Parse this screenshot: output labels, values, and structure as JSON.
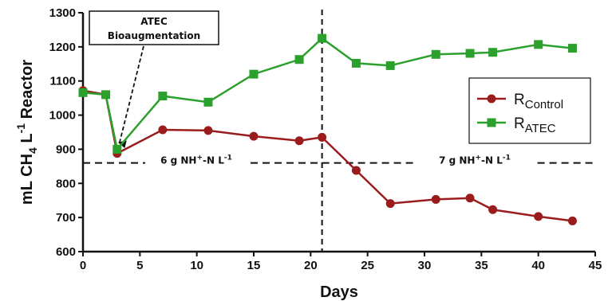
{
  "chart_data": {
    "type": "line",
    "title": "",
    "xlabel": "Days",
    "ylabel": {
      "main": "mL CH",
      "sub": "4",
      "mid": " L",
      "sup": "-1",
      "end": " Reactor"
    },
    "xlim": [
      0,
      45
    ],
    "ylim": [
      600,
      1300
    ],
    "xticks": [
      0,
      5,
      10,
      15,
      20,
      25,
      30,
      35,
      40,
      45
    ],
    "yticks": [
      600,
      700,
      800,
      900,
      1000,
      1100,
      1200,
      1300
    ],
    "grid": false,
    "legend_position": "right",
    "series": [
      {
        "name": {
          "base": "R",
          "sub": "Control"
        },
        "color": "#9b1c1c",
        "marker": "circle",
        "x": [
          0,
          2,
          3,
          7,
          11,
          15,
          19,
          21,
          24,
          27,
          31,
          34,
          36,
          40,
          43
        ],
        "y": [
          1072,
          1060,
          888,
          957,
          955,
          938,
          925,
          935,
          838,
          741,
          753,
          757,
          723,
          703,
          690
        ]
      },
      {
        "name": {
          "base": "R",
          "sub": "ATEC"
        },
        "color": "#2ca02c",
        "marker": "square",
        "x": [
          0,
          2,
          3,
          7,
          11,
          15,
          19,
          21,
          24,
          27,
          31,
          34,
          36,
          40,
          43
        ],
        "y": [
          1066,
          1060,
          900,
          1056,
          1038,
          1120,
          1163,
          1225,
          1152,
          1145,
          1178,
          1181,
          1184,
          1207,
          1196
        ]
      }
    ],
    "annotations": {
      "arrow_box": {
        "line1": "ATEC",
        "line2": "Bioaugmentation",
        "points_to_day": 3
      },
      "vertical_line_day": 21,
      "threshold_y": 860,
      "phase1_label": {
        "pre": "6 g NH",
        "sub": "4",
        "sup": "+",
        "post": "-N L",
        "sup2": "-1"
      },
      "phase2_label": {
        "pre": "7 g NH",
        "sub": "4",
        "sup": "+",
        "post": "-N L",
        "sup2": "-1"
      }
    }
  }
}
